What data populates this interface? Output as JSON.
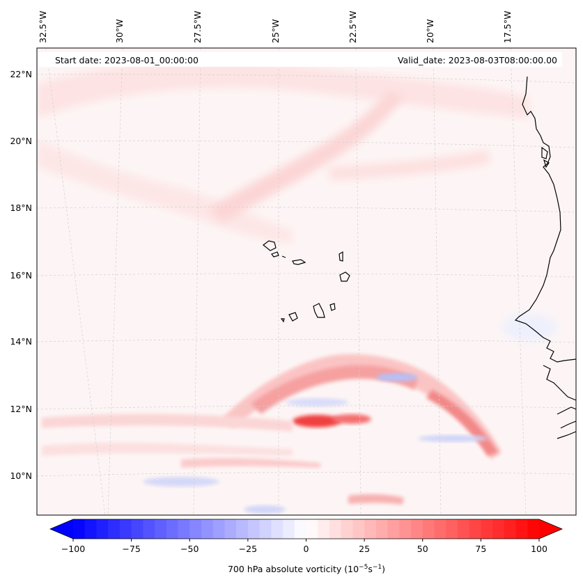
{
  "map": {
    "start_date": "Start date: 2023-08-01_00:00:00",
    "valid_date": "Valid_date: 2023-08-03T08:00:00.00",
    "lon_labels": [
      "32.5°W",
      "30°W",
      "27.5°W",
      "25°W",
      "22.5°W",
      "20°W",
      "17.5°W"
    ],
    "lat_labels": [
      "22°N",
      "20°N",
      "18°N",
      "16°N",
      "14°N",
      "12°N",
      "10°N"
    ],
    "coastline_color": "#000000",
    "gridline_color": "#cfcfcf"
  },
  "colorbar": {
    "label_main": "700 hPa absolute vorticity (10",
    "label_exp1": "−5",
    "label_mid": "s",
    "label_exp2": "−1",
    "label_end": ")",
    "ticks": [
      "−100",
      "−75",
      "−50",
      "−25",
      "0",
      "25",
      "50",
      "75",
      "100"
    ],
    "min": -100,
    "max": 100,
    "levels": 40,
    "negative_color": "#0000ff",
    "positive_color": "#ff0000",
    "extend": "both"
  }
}
